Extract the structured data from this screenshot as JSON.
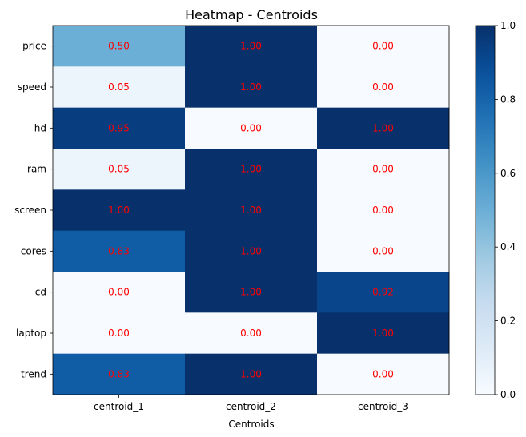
{
  "chart_data": {
    "type": "heatmap",
    "title": "Heatmap - Centroids",
    "xlabel": "Centroids",
    "ylabel": "",
    "x_categories": [
      "centroid_1",
      "centroid_2",
      "centroid_3"
    ],
    "y_categories": [
      "price",
      "speed",
      "hd",
      "ram",
      "screen",
      "cores",
      "cd",
      "laptop",
      "trend"
    ],
    "values": [
      [
        0.5,
        1.0,
        0.0
      ],
      [
        0.05,
        1.0,
        0.0
      ],
      [
        0.95,
        0.0,
        1.0
      ],
      [
        0.05,
        1.0,
        0.0
      ],
      [
        1.0,
        1.0,
        0.0
      ],
      [
        0.83,
        1.0,
        0.0
      ],
      [
        0.0,
        1.0,
        0.92
      ],
      [
        0.0,
        0.0,
        1.0
      ],
      [
        0.83,
        1.0,
        0.0
      ]
    ],
    "value_labels": [
      [
        "0.50",
        "1.00",
        "0.00"
      ],
      [
        "0.05",
        "1.00",
        "0.00"
      ],
      [
        "0.95",
        "0.00",
        "1.00"
      ],
      [
        "0.05",
        "1.00",
        "0.00"
      ],
      [
        "1.00",
        "1.00",
        "0.00"
      ],
      [
        "0.83",
        "1.00",
        "0.00"
      ],
      [
        "0.00",
        "1.00",
        "0.92"
      ],
      [
        "0.00",
        "0.00",
        "1.00"
      ],
      [
        "0.83",
        "1.00",
        "0.00"
      ]
    ],
    "colormap": "Blues",
    "colorbar": {
      "range": [
        0,
        1
      ],
      "ticks": [
        0.0,
        0.2,
        0.4,
        0.6,
        0.8,
        1.0
      ],
      "tick_labels": [
        "0.0",
        "0.2",
        "0.4",
        "0.6",
        "0.8",
        "1.0"
      ]
    },
    "cell_text_color": "#ff0000",
    "grid": false
  }
}
